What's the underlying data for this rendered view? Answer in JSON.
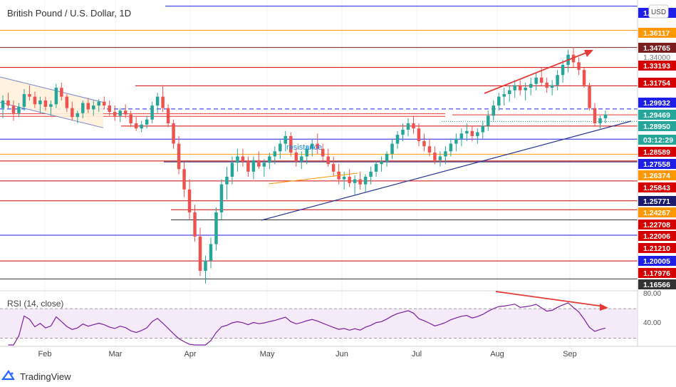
{
  "header": {
    "title": "British Pound / U.S. Dollar, 1D",
    "currency_button": "USD"
  },
  "footer": {
    "brand": "TradingView"
  },
  "chart_data": {
    "type": "candlestick",
    "symbol": "British Pound / U.S. Dollar",
    "interval": "1D",
    "x_labels": [
      "Feb",
      "Mar",
      "Apr",
      "May",
      "Jun",
      "Jul",
      "Aug",
      "Sep"
    ],
    "price_range": [
      1.158,
      1.385
    ],
    "horizontal_levels": [
      {
        "label": "1.38",
        "value": 1.3802,
        "color": "#1e1ee6",
        "style": "solid"
      },
      {
        "label": "1.36117",
        "value": 1.36117,
        "color": "#ff9800",
        "style": "solid"
      },
      {
        "label": "1.34765",
        "value": 1.34765,
        "color": "#7a1f1f",
        "style": "solid"
      },
      {
        "label": "1.33193",
        "value": 1.33193,
        "color": "#d50000",
        "style": "solid"
      },
      {
        "label": "1.31754",
        "value": 1.31754,
        "color": "#d50000",
        "style": "solid"
      },
      {
        "label": "1.29932",
        "value": 1.29932,
        "color": "#1e1ee6",
        "style": "dashed"
      },
      {
        "label": "1.29469",
        "value": 1.29469,
        "color": "#e53935",
        "style": "solid"
      },
      {
        "label": "1.28950",
        "value": 1.2895,
        "color": "#26a69a",
        "style": "dotted"
      },
      {
        "label": "1.28589",
        "value": 1.28589,
        "color": "#d50000",
        "style": "solid"
      },
      {
        "label": "1.27558",
        "value": 1.27558,
        "color": "#1e1ee6",
        "style": "solid"
      },
      {
        "label": "1.26374",
        "value": 1.26374,
        "color": "#ff9800",
        "style": "solid"
      },
      {
        "label": "1.25843",
        "value": 1.25843,
        "color": "#d50000",
        "style": "solid"
      },
      {
        "label": "1.25771",
        "value": 1.25771,
        "color": "#1a1a6e",
        "style": "solid"
      },
      {
        "label": "1.24267",
        "value": 1.24267,
        "color": "#d50000",
        "style": "solid"
      },
      {
        "label": "1.22708",
        "value": 1.22708,
        "color": "#d50000",
        "style": "solid"
      },
      {
        "label": "1.22006",
        "value": 1.22006,
        "color": "#d50000",
        "style": "solid"
      },
      {
        "label": "1.21210",
        "value": 1.2121,
        "color": "#333333",
        "style": "solid"
      },
      {
        "label": "1.20005",
        "value": 1.20005,
        "color": "#1e1ee6",
        "style": "solid"
      },
      {
        "label": "1.17976",
        "value": 1.17976,
        "color": "#d50000",
        "style": "solid"
      },
      {
        "label": "1.16566",
        "value": 1.16566,
        "color": "#333333",
        "style": "solid"
      }
    ],
    "axis_badges": [
      {
        "text": "1.38",
        "color": "#1e1ee6",
        "y_value": 1.3802
      },
      {
        "text": "1.36117",
        "color": "#ff9800",
        "y_value": 1.36117
      },
      {
        "text": "1.34765",
        "color": "#7a1f1f",
        "y_value": 1.34765
      },
      {
        "text": "1.34000",
        "color": "",
        "y_value": 1.34
      },
      {
        "text": "1.33193",
        "color": "#d50000",
        "y_value": 1.33193
      },
      {
        "text": "1.31754",
        "color": "#d50000",
        "y_value": 1.31754
      },
      {
        "text": "1.29932",
        "color": "#1e1ee6",
        "y_value": 1.29932
      },
      {
        "text": "1.29469",
        "color": "#26a69a",
        "y_value": 1.29469
      },
      {
        "text": "1.28950",
        "color": "#26a69a",
        "y_value": 1.2895
      },
      {
        "text": "03:12:29",
        "color": "#26a69a",
        "y_value": 1.284
      },
      {
        "text": "1.28589",
        "color": "#d50000",
        "y_value": 1.28589
      },
      {
        "text": "1.27558",
        "color": "#1e1ee6",
        "y_value": 1.27558
      },
      {
        "text": "1.26374",
        "color": "#ff9800",
        "y_value": 1.26374
      },
      {
        "text": "1.25843",
        "color": "#d50000",
        "y_value": 1.25843
      },
      {
        "text": "1.25771",
        "color": "#1a1a6e",
        "y_value": 1.25771
      },
      {
        "text": "1.24267",
        "color": "#ff9800",
        "y_value": 1.24267
      },
      {
        "text": "1.22708",
        "color": "#d50000",
        "y_value": 1.22708
      },
      {
        "text": "1.22006",
        "color": "#d50000",
        "y_value": 1.22006
      },
      {
        "text": "1.21210",
        "color": "#d50000",
        "y_value": 1.2121
      },
      {
        "text": "1.20005",
        "color": "#1e1ee6",
        "y_value": 1.20005
      },
      {
        "text": "1.17976",
        "color": "#d50000",
        "y_value": 1.17976
      },
      {
        "text": "1.16566",
        "color": "#333333",
        "y_value": 1.16566
      }
    ],
    "annotations": [
      {
        "type": "text",
        "text": "resistance",
        "color": "#1e88e5"
      }
    ],
    "candles_note": "Daily candles from mid-January to mid-September; sharp drop in March to ~1.165, rally to ~1.35 in late August, pullback to ~1.29 in September.",
    "candles": [
      [
        1.3,
        1.31,
        1.292,
        1.306
      ],
      [
        1.306,
        1.312,
        1.3,
        1.302
      ],
      [
        1.302,
        1.306,
        1.29,
        1.296
      ],
      [
        1.296,
        1.304,
        1.293,
        1.301
      ],
      [
        1.301,
        1.315,
        1.298,
        1.311
      ],
      [
        1.311,
        1.318,
        1.306,
        1.309
      ],
      [
        1.309,
        1.313,
        1.3,
        1.303
      ],
      [
        1.303,
        1.309,
        1.296,
        1.306
      ],
      [
        1.306,
        1.309,
        1.298,
        1.301
      ],
      [
        1.301,
        1.306,
        1.294,
        1.303
      ],
      [
        1.303,
        1.319,
        1.3,
        1.316
      ],
      [
        1.316,
        1.32,
        1.306,
        1.309
      ],
      [
        1.309,
        1.311,
        1.297,
        1.3
      ],
      [
        1.3,
        1.305,
        1.29,
        1.293
      ],
      [
        1.293,
        1.298,
        1.288,
        1.296
      ],
      [
        1.296,
        1.306,
        1.292,
        1.304
      ],
      [
        1.304,
        1.308,
        1.296,
        1.299
      ],
      [
        1.299,
        1.306,
        1.294,
        1.302
      ],
      [
        1.302,
        1.307,
        1.297,
        1.305
      ],
      [
        1.305,
        1.309,
        1.299,
        1.302
      ],
      [
        1.302,
        1.306,
        1.294,
        1.297
      ],
      [
        1.297,
        1.302,
        1.29,
        1.294
      ],
      [
        1.294,
        1.3,
        1.289,
        1.298
      ],
      [
        1.298,
        1.303,
        1.292,
        1.295
      ],
      [
        1.295,
        1.298,
        1.285,
        1.288
      ],
      [
        1.288,
        1.293,
        1.282,
        1.284
      ],
      [
        1.284,
        1.29,
        1.281,
        1.287
      ],
      [
        1.287,
        1.294,
        1.284,
        1.291
      ],
      [
        1.291,
        1.305,
        1.288,
        1.302
      ],
      [
        1.302,
        1.312,
        1.296,
        1.309
      ],
      [
        1.309,
        1.318,
        1.297,
        1.3
      ],
      [
        1.3,
        1.303,
        1.285,
        1.288
      ],
      [
        1.288,
        1.291,
        1.268,
        1.272
      ],
      [
        1.272,
        1.278,
        1.248,
        1.252
      ],
      [
        1.252,
        1.258,
        1.23,
        1.236
      ],
      [
        1.236,
        1.244,
        1.212,
        1.218
      ],
      [
        1.218,
        1.224,
        1.195,
        1.199
      ],
      [
        1.199,
        1.206,
        1.168,
        1.172
      ],
      [
        1.172,
        1.184,
        1.162,
        1.18
      ],
      [
        1.18,
        1.198,
        1.174,
        1.193
      ],
      [
        1.193,
        1.222,
        1.188,
        1.218
      ],
      [
        1.218,
        1.244,
        1.212,
        1.24
      ],
      [
        1.24,
        1.254,
        1.228,
        1.246
      ],
      [
        1.246,
        1.262,
        1.24,
        1.257
      ],
      [
        1.257,
        1.268,
        1.25,
        1.262
      ],
      [
        1.262,
        1.268,
        1.254,
        1.258
      ],
      [
        1.258,
        1.262,
        1.246,
        1.25
      ],
      [
        1.25,
        1.262,
        1.244,
        1.259
      ],
      [
        1.259,
        1.266,
        1.252,
        1.254
      ],
      [
        1.254,
        1.26,
        1.246,
        1.257
      ],
      [
        1.257,
        1.265,
        1.252,
        1.262
      ],
      [
        1.262,
        1.27,
        1.256,
        1.266
      ],
      [
        1.266,
        1.275,
        1.26,
        1.272
      ],
      [
        1.272,
        1.282,
        1.266,
        1.278
      ],
      [
        1.278,
        1.281,
        1.262,
        1.265
      ],
      [
        1.265,
        1.268,
        1.254,
        1.258
      ],
      [
        1.258,
        1.266,
        1.252,
        1.262
      ],
      [
        1.262,
        1.27,
        1.256,
        1.268
      ],
      [
        1.268,
        1.276,
        1.262,
        1.272
      ],
      [
        1.272,
        1.28,
        1.264,
        1.268
      ],
      [
        1.268,
        1.272,
        1.258,
        1.262
      ],
      [
        1.262,
        1.268,
        1.254,
        1.256
      ],
      [
        1.256,
        1.262,
        1.246,
        1.25
      ],
      [
        1.25,
        1.256,
        1.24,
        1.244
      ],
      [
        1.244,
        1.25,
        1.236,
        1.246
      ],
      [
        1.246,
        1.252,
        1.238,
        1.241
      ],
      [
        1.241,
        1.247,
        1.232,
        1.244
      ],
      [
        1.244,
        1.25,
        1.236,
        1.24
      ],
      [
        1.24,
        1.248,
        1.234,
        1.246
      ],
      [
        1.246,
        1.254,
        1.24,
        1.25
      ],
      [
        1.25,
        1.258,
        1.246,
        1.256
      ],
      [
        1.256,
        1.262,
        1.25,
        1.258
      ],
      [
        1.258,
        1.266,
        1.254,
        1.264
      ],
      [
        1.264,
        1.276,
        1.26,
        1.272
      ],
      [
        1.272,
        1.282,
        1.268,
        1.279
      ],
      [
        1.279,
        1.288,
        1.274,
        1.283
      ],
      [
        1.283,
        1.292,
        1.278,
        1.288
      ],
      [
        1.288,
        1.294,
        1.28,
        1.284
      ],
      [
        1.284,
        1.288,
        1.27,
        1.274
      ],
      [
        1.274,
        1.28,
        1.266,
        1.27
      ],
      [
        1.27,
        1.276,
        1.262,
        1.265
      ],
      [
        1.265,
        1.27,
        1.256,
        1.259
      ],
      [
        1.259,
        1.266,
        1.254,
        1.262
      ],
      [
        1.262,
        1.27,
        1.256,
        1.266
      ],
      [
        1.266,
        1.276,
        1.262,
        1.272
      ],
      [
        1.272,
        1.28,
        1.266,
        1.276
      ],
      [
        1.276,
        1.284,
        1.27,
        1.28
      ],
      [
        1.28,
        1.288,
        1.274,
        1.282
      ],
      [
        1.282,
        1.286,
        1.274,
        1.278
      ],
      [
        1.278,
        1.284,
        1.272,
        1.281
      ],
      [
        1.281,
        1.29,
        1.276,
        1.286
      ],
      [
        1.286,
        1.298,
        1.282,
        1.294
      ],
      [
        1.294,
        1.306,
        1.29,
        1.302
      ],
      [
        1.302,
        1.312,
        1.298,
        1.309
      ],
      [
        1.309,
        1.316,
        1.302,
        1.311
      ],
      [
        1.311,
        1.318,
        1.305,
        1.314
      ],
      [
        1.314,
        1.322,
        1.308,
        1.318
      ],
      [
        1.318,
        1.322,
        1.31,
        1.314
      ],
      [
        1.314,
        1.32,
        1.306,
        1.316
      ],
      [
        1.316,
        1.324,
        1.31,
        1.319
      ],
      [
        1.319,
        1.328,
        1.314,
        1.324
      ],
      [
        1.324,
        1.332,
        1.318,
        1.32
      ],
      [
        1.32,
        1.324,
        1.312,
        1.316
      ],
      [
        1.316,
        1.322,
        1.31,
        1.318
      ],
      [
        1.318,
        1.33,
        1.314,
        1.326
      ],
      [
        1.326,
        1.338,
        1.32,
        1.334
      ],
      [
        1.334,
        1.346,
        1.328,
        1.342
      ],
      [
        1.342,
        1.348,
        1.332,
        1.336
      ],
      [
        1.336,
        1.34,
        1.326,
        1.33
      ],
      [
        1.33,
        1.332,
        1.316,
        1.318
      ],
      [
        1.318,
        1.32,
        1.298,
        1.3
      ],
      [
        1.3,
        1.304,
        1.286,
        1.288
      ],
      [
        1.288,
        1.294,
        1.284,
        1.292
      ],
      [
        1.292,
        1.298,
        1.288,
        1.295
      ]
    ]
  },
  "rsi": {
    "label": "RSI (14, close)",
    "levels": [
      "80.00",
      "40.00"
    ],
    "upper": 70,
    "lower": 30
  }
}
